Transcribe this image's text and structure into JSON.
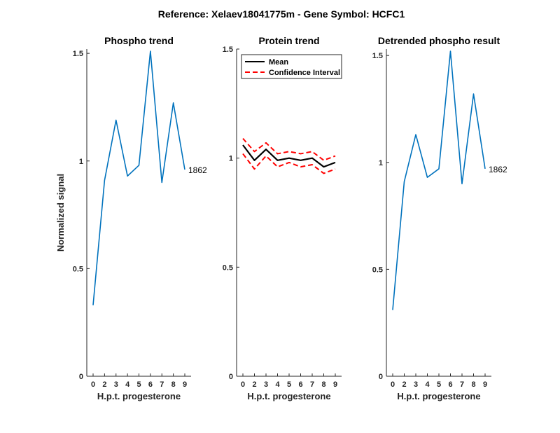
{
  "figure": {
    "suptitle": "Reference:  Xelaev18041775m - Gene Symbol:  HCFC1"
  },
  "colors": {
    "series": "#0072BD",
    "mean": "#000000",
    "ci": "#FF0000"
  },
  "chart_data": [
    {
      "type": "line",
      "title": "Phospho trend",
      "xlabel": "H.p.t. progesterone",
      "ylabel": "Normalized signal",
      "x": [
        "0",
        "2",
        "3",
        "4",
        "5",
        "6",
        "7",
        "8",
        "9"
      ],
      "ylim": [
        0,
        1.52
      ],
      "yticks": [
        0,
        0.5,
        1,
        1.5
      ],
      "ytick_labels": [
        "0",
        "0.5",
        "1",
        "1.5"
      ],
      "series": [
        {
          "values": [
            0.33,
            0.91,
            1.19,
            0.93,
            0.98,
            1.51,
            0.9,
            1.27,
            0.96
          ],
          "end_label": "1862"
        }
      ]
    },
    {
      "type": "line",
      "title": "Protein trend",
      "xlabel": "H.p.t. progesterone",
      "ylabel": "",
      "x": [
        "0",
        "2",
        "3",
        "4",
        "5",
        "6",
        "7",
        "8",
        "9"
      ],
      "ylim": [
        0,
        1.5
      ],
      "yticks": [
        0,
        0.5,
        1,
        1.5
      ],
      "ytick_labels": [
        "0",
        "0.5",
        "1",
        "1.5"
      ],
      "legend": {
        "position": "top-left",
        "entries": [
          "Mean",
          "Confidence Interval"
        ]
      },
      "series": [
        {
          "name": "Mean",
          "values": [
            1.06,
            0.99,
            1.04,
            0.99,
            1.0,
            0.99,
            1.0,
            0.96,
            0.98
          ]
        },
        {
          "name": "Confidence Interval",
          "values": [
            1.09,
            1.03,
            1.07,
            1.02,
            1.03,
            1.02,
            1.03,
            0.99,
            1.01
          ]
        },
        {
          "name": "Confidence Interval",
          "values": [
            1.02,
            0.95,
            1.01,
            0.96,
            0.98,
            0.96,
            0.97,
            0.93,
            0.95
          ]
        }
      ]
    },
    {
      "type": "line",
      "title": "Detrended phospho result",
      "xlabel": "H.p.t. progesterone",
      "ylabel": "",
      "x": [
        "0",
        "2",
        "3",
        "4",
        "5",
        "6",
        "7",
        "8",
        "9"
      ],
      "ylim": [
        0,
        1.53
      ],
      "yticks": [
        0,
        0.5,
        1,
        1.5
      ],
      "ytick_labels": [
        "0",
        "0.5",
        "1",
        "1.5"
      ],
      "series": [
        {
          "values": [
            0.31,
            0.91,
            1.13,
            0.93,
            0.97,
            1.52,
            0.9,
            1.32,
            0.97
          ],
          "end_label": "1862"
        }
      ]
    }
  ]
}
